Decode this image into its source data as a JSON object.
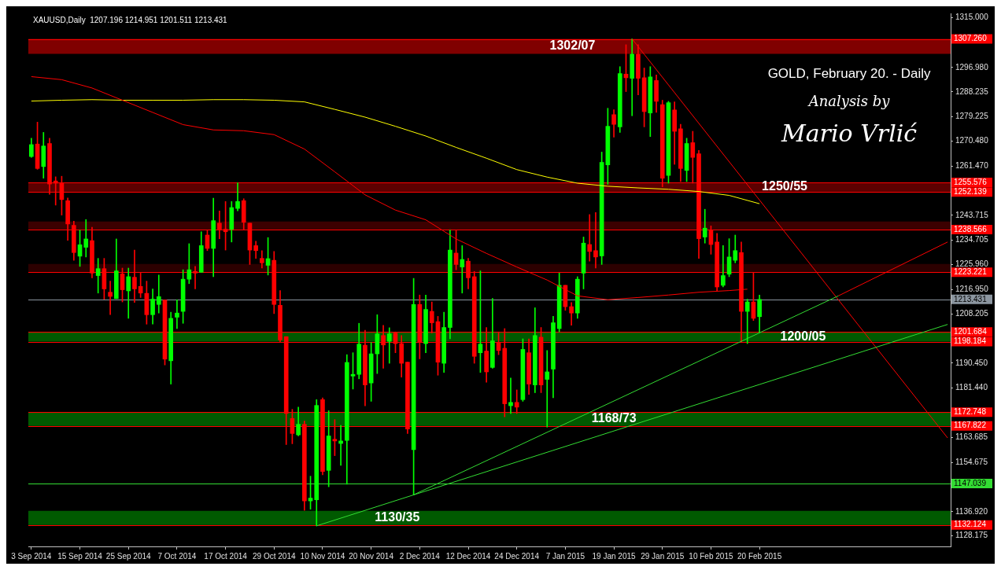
{
  "chart_data": {
    "type": "candlestick",
    "title": "XAUUSD,Daily  1207.196 1214.951 1201.511 1213.431",
    "subtitle": "GOLD, February 20. - Daily",
    "annotations": [
      "Analysis by",
      "Mario Vrlić"
    ],
    "categories": [
      "3 Sep 2014",
      null,
      null,
      null,
      null,
      null,
      null,
      null,
      "15 Sep 2014",
      null,
      null,
      null,
      null,
      null,
      null,
      null,
      "25 Sep 2014",
      null,
      null,
      null,
      null,
      null,
      null,
      null,
      "7 Oct 2014",
      null,
      null,
      null,
      null,
      null,
      null,
      null,
      "17 Oct 2014",
      null,
      null,
      null,
      null,
      null,
      null,
      null,
      "29 Oct 2014",
      null,
      null,
      null,
      null,
      null,
      null,
      null,
      "10 Nov 2014",
      null,
      null,
      null,
      null,
      null,
      null,
      null,
      "20 Nov 2014",
      null,
      null,
      null,
      null,
      null,
      null,
      null,
      "2 Dec 2014",
      null,
      null,
      null,
      null,
      null,
      null,
      null,
      "12 Dec 2014",
      null,
      null,
      null,
      null,
      null,
      null,
      null,
      "24 Dec 2014",
      null,
      null,
      null,
      null,
      null,
      null,
      null,
      "7 Jan 2015",
      null,
      null,
      null,
      null,
      null,
      null,
      null,
      "19 Jan 2015",
      null,
      null,
      null,
      null,
      null,
      null,
      null,
      "29 Jan 2015",
      null,
      null,
      null,
      null,
      null,
      null,
      null,
      "10 Feb 2015",
      null,
      null,
      null,
      null,
      null,
      null,
      null,
      "20 Feb 2015",
      null,
      null,
      null,
      null,
      null,
      null,
      null,
      null,
      null,
      null,
      null,
      null,
      null,
      null,
      null,
      null,
      null,
      null,
      null,
      null,
      null,
      null,
      null,
      null,
      null,
      null,
      null,
      null,
      null,
      null,
      null
    ],
    "ohlc": [
      [
        1264.9,
        1271.5,
        1264.6,
        1269.2
      ],
      [
        1269.4,
        1277.3,
        1260.3,
        1260.6
      ],
      [
        1261.3,
        1273.6,
        1257.1,
        1268.7
      ],
      [
        1269.6,
        1271.5,
        1251.3,
        1255.0
      ],
      [
        1256.1,
        1257.6,
        1247.4,
        1255.3
      ],
      [
        1255.3,
        1257.8,
        1243.8,
        1249.4
      ],
      [
        1249.0,
        1250.0,
        1234.7,
        1240.6
      ],
      [
        1240.1,
        1241.6,
        1227.5,
        1230.3
      ],
      [
        1229.0,
        1238.4,
        1225.3,
        1233.1
      ],
      [
        1232.2,
        1242.2,
        1228.7,
        1235.2
      ],
      [
        1234.6,
        1239.4,
        1221.2,
        1222.9
      ],
      [
        1222.0,
        1228.2,
        1215.7,
        1224.5
      ],
      [
        1224.5,
        1228.2,
        1213.5,
        1217.2
      ],
      [
        1216.0,
        1220.0,
        1207.9,
        1214.5
      ],
      [
        1213.7,
        1235.2,
        1213.7,
        1223.7
      ],
      [
        1222.6,
        1224.7,
        1212.5,
        1216.9
      ],
      [
        1216.5,
        1224.7,
        1206.6,
        1221.6
      ],
      [
        1221.4,
        1231.2,
        1212.3,
        1217.2
      ],
      [
        1218.1,
        1222.9,
        1214.1,
        1215.7
      ],
      [
        1215.6,
        1220.0,
        1204.5,
        1207.9
      ],
      [
        1207.9,
        1217.2,
        1204.5,
        1213.5
      ],
      [
        1211.6,
        1222.2,
        1208.5,
        1214.4
      ],
      [
        1213.2,
        1213.3,
        1189.8,
        1191.9
      ],
      [
        1191.3,
        1208.8,
        1182.9,
        1206.6
      ],
      [
        1207.0,
        1213.3,
        1202.9,
        1208.5
      ],
      [
        1209.1,
        1224.1,
        1204.8,
        1220.7
      ],
      [
        1220.7,
        1233.5,
        1219.1,
        1224.1
      ],
      [
        1223.5,
        1225.3,
        1217.2,
        1222.9
      ],
      [
        1223.2,
        1237.8,
        1223.2,
        1232.8
      ],
      [
        1236.6,
        1238.2,
        1231.0,
        1231.8
      ],
      [
        1231.8,
        1249.9,
        1221.6,
        1241.8
      ],
      [
        1240.9,
        1245.3,
        1235.3,
        1238.7
      ],
      [
        1238.7,
        1248.7,
        1231.2,
        1237.8
      ],
      [
        1238.7,
        1248.7,
        1234.1,
        1246.5
      ],
      [
        1246.2,
        1255.4,
        1245.3,
        1248.7
      ],
      [
        1249.0,
        1249.7,
        1238.4,
        1241.2
      ],
      [
        1240.9,
        1240.9,
        1226.0,
        1231.2
      ],
      [
        1232.8,
        1234.4,
        1228.2,
        1231.0
      ],
      [
        1228.2,
        1231.0,
        1224.7,
        1226.6
      ],
      [
        1225.7,
        1235.7,
        1222.2,
        1228.1
      ],
      [
        1227.5,
        1230.7,
        1208.3,
        1211.6
      ],
      [
        1211.3,
        1216.6,
        1197.9,
        1198.8
      ],
      [
        1200.0,
        1200.0,
        1161.1,
        1172.3
      ],
      [
        1170.5,
        1173.8,
        1161.4,
        1165.1
      ],
      [
        1164.6,
        1174.6,
        1164.2,
        1168.4
      ],
      [
        1168.4,
        1169.6,
        1137.4,
        1140.8
      ],
      [
        1140.8,
        1149.7,
        1137.8,
        1141.8
      ],
      [
        1141.2,
        1177.3,
        1131.8,
        1175.2
      ],
      [
        1177.3,
        1177.9,
        1150.2,
        1151.4
      ],
      [
        1151.8,
        1173.3,
        1145.9,
        1164.2
      ],
      [
        1163.0,
        1170.1,
        1157.1,
        1162.4
      ],
      [
        1161.5,
        1168.0,
        1153.6,
        1162.4
      ],
      [
        1162.6,
        1193.5,
        1146.8,
        1190.7
      ],
      [
        1185.8,
        1194.2,
        1181.1,
        1186.4
      ],
      [
        1186.4,
        1204.8,
        1184.8,
        1197.3
      ],
      [
        1196.9,
        1202.3,
        1175.1,
        1182.6
      ],
      [
        1183.3,
        1197.9,
        1176.7,
        1193.8
      ],
      [
        1193.8,
        1207.9,
        1186.7,
        1201.0
      ],
      [
        1200.4,
        1204.1,
        1188.6,
        1197.0
      ],
      [
        1198.3,
        1203.2,
        1190.4,
        1201.0
      ],
      [
        1201.3,
        1201.7,
        1194.2,
        1197.5
      ],
      [
        1197.5,
        1200.4,
        1185.4,
        1190.4
      ],
      [
        1190.8,
        1190.8,
        1165.1,
        1166.7
      ],
      [
        1159.3,
        1221.0,
        1143.0,
        1211.6
      ],
      [
        1211.6,
        1215.0,
        1192.0,
        1197.9
      ],
      [
        1197.5,
        1215.0,
        1194.2,
        1209.8
      ],
      [
        1209.1,
        1212.5,
        1201.3,
        1205.0
      ],
      [
        1205.4,
        1207.3,
        1186.1,
        1190.8
      ],
      [
        1190.4,
        1208.8,
        1187.1,
        1203.3
      ],
      [
        1203.3,
        1238.4,
        1199.2,
        1231.2
      ],
      [
        1230.1,
        1238.4,
        1224.1,
        1226.0
      ],
      [
        1225.1,
        1232.8,
        1215.7,
        1227.8
      ],
      [
        1227.2,
        1228.2,
        1217.2,
        1221.2
      ],
      [
        1221.6,
        1223.5,
        1190.4,
        1192.9
      ],
      [
        1194.2,
        1223.7,
        1187.1,
        1197.3
      ],
      [
        1194.8,
        1203.3,
        1183.6,
        1187.3
      ],
      [
        1188.9,
        1213.8,
        1188.6,
        1198.5
      ],
      [
        1197.9,
        1201.7,
        1193.5,
        1195.0
      ],
      [
        1195.8,
        1202.9,
        1171.1,
        1175.8
      ],
      [
        1175.1,
        1185.1,
        1172.3,
        1176.3
      ],
      [
        1176.3,
        1180.8,
        1172.3,
        1174.6
      ],
      [
        1177.3,
        1199.2,
        1176.7,
        1195.4
      ],
      [
        1194.2,
        1199.2,
        1179.2,
        1182.9
      ],
      [
        1182.6,
        1210.4,
        1179.8,
        1200.4
      ],
      [
        1199.8,
        1203.3,
        1179.8,
        1182.6
      ],
      [
        1184.6,
        1195.0,
        1167.4,
        1187.3
      ],
      [
        1188.3,
        1207.3,
        1178.0,
        1205.0
      ],
      [
        1202.9,
        1222.9,
        1201.7,
        1218.5
      ],
      [
        1218.5,
        1218.5,
        1209.5,
        1210.8
      ],
      [
        1210.8,
        1212.3,
        1204.1,
        1208.5
      ],
      [
        1208.5,
        1221.6,
        1206.6,
        1220.7
      ],
      [
        1222.9,
        1235.9,
        1217.2,
        1233.7
      ],
      [
        1233.2,
        1244.0,
        1227.2,
        1230.7
      ],
      [
        1231.0,
        1244.7,
        1224.7,
        1228.7
      ],
      [
        1229.1,
        1266.5,
        1226.0,
        1262.8
      ],
      [
        1261.9,
        1282.3,
        1254.9,
        1275.8
      ],
      [
        1280.0,
        1281.8,
        1271.9,
        1276.5
      ],
      [
        1275.6,
        1297.3,
        1273.6,
        1294.8
      ],
      [
        1294.6,
        1305.2,
        1288.3,
        1293.3
      ],
      [
        1293.1,
        1307.3,
        1279.6,
        1301.8
      ],
      [
        1301.8,
        1305.2,
        1287.1,
        1293.1
      ],
      [
        1293.3,
        1296.8,
        1275.6,
        1281.1
      ],
      [
        1280.6,
        1297.3,
        1272.1,
        1293.6
      ],
      [
        1292.3,
        1294.3,
        1280.8,
        1284.8
      ],
      [
        1283.6,
        1285.2,
        1254.0,
        1257.1
      ],
      [
        1258.1,
        1284.8,
        1255.3,
        1284.3
      ],
      [
        1281.7,
        1284.6,
        1262.1,
        1274.0
      ],
      [
        1274.9,
        1276.5,
        1255.9,
        1260.6
      ],
      [
        1259.9,
        1271.5,
        1255.9,
        1269.6
      ],
      [
        1269.9,
        1274.0,
        1255.3,
        1264.6
      ],
      [
        1265.9,
        1267.1,
        1228.2,
        1235.3
      ],
      [
        1235.9,
        1245.9,
        1233.7,
        1239.1
      ],
      [
        1238.2,
        1239.9,
        1229.7,
        1233.2
      ],
      [
        1234.1,
        1237.2,
        1216.6,
        1217.9
      ],
      [
        1218.5,
        1232.8,
        1217.9,
        1222.0
      ],
      [
        1222.5,
        1235.3,
        1221.6,
        1228.7
      ],
      [
        1227.5,
        1236.6,
        1226.6,
        1231.0
      ],
      [
        1230.3,
        1234.1,
        1197.9,
        1209.1
      ],
      [
        1209.1,
        1213.5,
        1197.5,
        1212.5
      ],
      [
        1212.5,
        1222.9,
        1205.8,
        1206.6
      ],
      [
        1207.196,
        1214.951,
        1201.511,
        1213.431
      ],
      null,
      null,
      null,
      null,
      null,
      null,
      null,
      null,
      null,
      null,
      null,
      null,
      null,
      null,
      null,
      null,
      null,
      null,
      null,
      null,
      null,
      null,
      null,
      null,
      null,
      null,
      null,
      null,
      null,
      null,
      null
    ],
    "series": [
      {
        "type": "line",
        "color": "#ff0000",
        "values": [
          1293.7,
          null,
          null,
          null,
          null,
          1292.6,
          null,
          null,
          null,
          null,
          1289.6,
          null,
          null,
          null,
          null,
          1285.2,
          null,
          null,
          null,
          null,
          1280.8,
          null,
          null,
          null,
          null,
          1276.4,
          null,
          null,
          null,
          null,
          1274.5,
          null,
          null,
          null,
          null,
          1274.2,
          null,
          null,
          null,
          null,
          1272.8,
          null,
          null,
          null,
          null,
          1267.6,
          null,
          null,
          null,
          null,
          1259.4,
          null,
          null,
          null,
          null,
          1251.1,
          null,
          null,
          null,
          null,
          1245.6,
          null,
          null,
          null,
          null,
          1242.1,
          null,
          null,
          null,
          null,
          1235.2,
          null,
          null,
          null,
          null,
          1230.0,
          null,
          null,
          null,
          null,
          1225.1,
          null,
          null,
          null,
          null,
          1220.4,
          null,
          null,
          null,
          null,
          1214.7,
          null,
          null,
          null,
          null,
          1213.3,
          null,
          null,
          null,
          null,
          1214.1,
          null,
          null,
          null,
          null,
          1215.0,
          null,
          null,
          null,
          null,
          1216.0,
          null,
          null,
          null,
          null,
          1216.6,
          null,
          null,
          1217.1,
          null,
          null,
          null,
          null,
          null,
          null,
          null,
          null,
          null,
          null,
          null,
          null,
          null,
          null,
          null,
          null,
          null,
          null,
          null,
          null,
          null,
          null,
          null,
          null,
          null,
          null,
          null,
          null,
          null,
          null,
          null,
          null,
          null
        ]
      },
      {
        "type": "line",
        "color": "#ffff00",
        "values": [
          1284.9,
          null,
          null,
          null,
          null,
          1285.2,
          null,
          null,
          null,
          null,
          1285.4,
          null,
          null,
          null,
          null,
          1285.2,
          null,
          null,
          null,
          null,
          1285.2,
          null,
          null,
          null,
          null,
          1285.2,
          null,
          null,
          null,
          null,
          1285.4,
          null,
          null,
          null,
          null,
          1285.4,
          null,
          null,
          null,
          null,
          1285.2,
          null,
          null,
          null,
          null,
          1284.6,
          null,
          null,
          null,
          null,
          1281.9,
          null,
          null,
          null,
          null,
          1279.1,
          null,
          null,
          null,
          null,
          1275.8,
          null,
          null,
          null,
          null,
          1272.3,
          null,
          null,
          null,
          null,
          1268.2,
          null,
          null,
          null,
          null,
          1264.3,
          null,
          null,
          null,
          null,
          1260.2,
          null,
          null,
          null,
          null,
          1257.5,
          null,
          null,
          null,
          null,
          1255.3,
          null,
          null,
          null,
          null,
          1254.2,
          null,
          null,
          null,
          null,
          1253.6,
          null,
          null,
          null,
          null,
          1253.1,
          null,
          null,
          null,
          null,
          1252.3,
          null,
          null,
          null,
          null,
          1250.9,
          null,
          null,
          null,
          null,
          1247.9,
          null,
          null,
          null,
          null,
          null,
          null,
          null,
          null,
          null,
          null,
          null,
          null,
          null,
          null,
          null,
          null,
          null,
          null,
          null,
          null,
          null,
          null,
          null,
          null,
          null,
          null,
          null,
          null,
          null,
          null,
          null
        ]
      },
      {
        "type": "line",
        "color": "#33dd33",
        "values": [
          null,
          null,
          null,
          null,
          null,
          null,
          null,
          null,
          null,
          null,
          null,
          null,
          null,
          null,
          null,
          null,
          null,
          null,
          null,
          null,
          null,
          null,
          null,
          null,
          null,
          null,
          null,
          null,
          null,
          null,
          null,
          null,
          null,
          null,
          null,
          null,
          null,
          null,
          null,
          null,
          null,
          null,
          null,
          null,
          null,
          null,
          null,
          1131.8,
          null,
          null,
          null,
          null,
          null,
          null,
          null,
          null,
          null,
          null,
          null,
          null,
          null,
          null,
          null,
          null,
          null,
          null,
          null,
          null,
          null,
          null,
          null,
          null,
          null,
          null,
          null,
          null,
          null,
          null,
          null,
          null,
          null,
          null,
          null,
          null,
          null,
          null,
          null,
          null,
          null,
          null,
          null,
          null,
          null,
          null,
          null,
          null,
          null,
          null,
          null,
          null,
          null,
          null,
          null,
          null,
          null,
          null,
          null,
          null,
          null,
          null,
          null,
          null,
          null,
          null,
          null,
          null,
          null,
          null,
          null,
          null,
          null,
          null,
          null,
          null,
          null,
          null,
          null,
          null,
          null,
          null,
          null,
          null,
          null,
          null,
          null,
          null,
          null,
          null,
          null,
          null,
          null,
          null,
          null,
          null,
          null,
          null,
          null,
          null,
          null,
          null,
          null,
          1204.4
        ]
      },
      {
        "type": "line",
        "color": "#33dd33",
        "values": [
          null,
          null,
          null,
          null,
          null,
          null,
          null,
          null,
          null,
          null,
          null,
          null,
          null,
          null,
          null,
          null,
          null,
          null,
          null,
          null,
          null,
          null,
          null,
          null,
          null,
          null,
          null,
          null,
          null,
          null,
          null,
          null,
          null,
          null,
          null,
          null,
          null,
          null,
          null,
          null,
          null,
          null,
          null,
          null,
          null,
          null,
          null,
          null,
          null,
          null,
          null,
          null,
          null,
          null,
          null,
          null,
          null,
          null,
          null,
          null,
          null,
          null,
          null,
          1143.0,
          null,
          null,
          null,
          null,
          null,
          null,
          null,
          null,
          null,
          null,
          null,
          null,
          null,
          null,
          null,
          null,
          null,
          null,
          null,
          null,
          null,
          null,
          null,
          null,
          null,
          null,
          null,
          null,
          null,
          null,
          null,
          null,
          null,
          null,
          null,
          null,
          null,
          null,
          null,
          null,
          null,
          null,
          null,
          null,
          null,
          null,
          null,
          null,
          null,
          null,
          null,
          null,
          null,
          null,
          null,
          null,
          null,
          null,
          null,
          null,
          null,
          null,
          null,
          null,
          null,
          null,
          null,
          null,
          null,
          1214.7,
          null,
          null,
          null,
          null,
          null,
          null,
          null,
          null,
          null,
          null,
          null,
          null,
          null,
          null,
          null,
          null,
          null,
          null
        ]
      },
      {
        "type": "line",
        "color": "#ff0000",
        "values": [
          null,
          null,
          null,
          null,
          null,
          null,
          null,
          null,
          null,
          null,
          null,
          null,
          null,
          null,
          null,
          null,
          null,
          null,
          null,
          null,
          null,
          null,
          null,
          null,
          null,
          null,
          null,
          null,
          null,
          null,
          null,
          null,
          null,
          null,
          null,
          null,
          null,
          null,
          null,
          null,
          null,
          null,
          null,
          null,
          null,
          null,
          null,
          null,
          null,
          null,
          null,
          null,
          null,
          null,
          null,
          null,
          null,
          null,
          null,
          null,
          null,
          null,
          null,
          null,
          null,
          null,
          null,
          null,
          null,
          null,
          null,
          null,
          null,
          null,
          null,
          null,
          null,
          null,
          null,
          null,
          null,
          null,
          null,
          null,
          null,
          null,
          null,
          null,
          null,
          null,
          null,
          null,
          null,
          null,
          null,
          null,
          null,
          null,
          null,
          null,
          null,
          null,
          null,
          null,
          null,
          null,
          null,
          null,
          null,
          null,
          null,
          null,
          null,
          null,
          null,
          null,
          null,
          null,
          null,
          null,
          null,
          null,
          null,
          null,
          null,
          null,
          null,
          null,
          null,
          null,
          null,
          null,
          null,
          1214.7,
          null,
          null,
          null,
          null,
          null,
          null,
          null,
          null,
          null,
          null,
          null,
          null,
          null,
          null,
          null,
          null,
          null,
          1234.1
        ]
      },
      {
        "type": "line",
        "color": "#ff0000",
        "values": [
          null,
          null,
          null,
          null,
          null,
          null,
          null,
          null,
          null,
          null,
          null,
          null,
          null,
          null,
          null,
          null,
          null,
          null,
          null,
          null,
          null,
          null,
          null,
          null,
          null,
          null,
          null,
          null,
          null,
          null,
          null,
          null,
          null,
          null,
          null,
          null,
          null,
          null,
          null,
          null,
          null,
          null,
          null,
          null,
          null,
          null,
          null,
          null,
          null,
          null,
          null,
          null,
          null,
          null,
          null,
          null,
          null,
          null,
          null,
          null,
          null,
          null,
          null,
          null,
          null,
          null,
          null,
          null,
          null,
          null,
          null,
          null,
          null,
          null,
          null,
          null,
          null,
          null,
          null,
          null,
          null,
          null,
          null,
          null,
          null,
          null,
          null,
          null,
          null,
          null,
          null,
          null,
          null,
          null,
          null,
          null,
          null,
          null,
          null,
          1307.3,
          null,
          null,
          null,
          null,
          null,
          null,
          null,
          null,
          null,
          null,
          null,
          null,
          null,
          null,
          null,
          null,
          null,
          null,
          null,
          null,
          null,
          null,
          null,
          null,
          null,
          null,
          null,
          null,
          null,
          null,
          null,
          null,
          null,
          null,
          null,
          null,
          null,
          null,
          null,
          null,
          null,
          null,
          null,
          null,
          null,
          null,
          null,
          null,
          null,
          null,
          null,
          1163.5
        ]
      }
    ],
    "ylim": [
      1124.4,
      1316.5
    ],
    "yticks": [
      {
        "value": 1315,
        "label": "1315.000"
      },
      {
        "value": 1296.98,
        "label": "1296.980"
      },
      {
        "value": 1288.235,
        "label": "1288.235"
      },
      {
        "value": 1279.225,
        "label": "1279.225"
      },
      {
        "value": 1270.48,
        "label": "1270.480"
      },
      {
        "value": 1261.47,
        "label": "1261.470"
      },
      {
        "value": 1243.715,
        "label": "1243.715"
      },
      {
        "value": 1234.705,
        "label": "1234.705"
      },
      {
        "value": 1225.96,
        "label": "1225.960"
      },
      {
        "value": 1216.95,
        "label": "1216.950"
      },
      {
        "value": 1208.205,
        "label": "1208.205"
      },
      {
        "value": 1190.45,
        "label": "1190.450"
      },
      {
        "value": 1181.44,
        "label": "1181.440"
      },
      {
        "value": 1163.685,
        "label": "1163.685"
      },
      {
        "value": 1154.675,
        "label": "1154.675"
      },
      {
        "value": 1136.92,
        "label": "1136.920"
      },
      {
        "value": 1128.175,
        "label": "1128.175"
      }
    ],
    "bands": [
      {
        "axis": "y",
        "from": 1301.9,
        "to": 1307.26,
        "label": "1302/07",
        "color": "#800000"
      },
      {
        "axis": "y",
        "from": 1252.139,
        "to": 1255.576,
        "label": "1250/55",
        "color": "#5c0000"
      },
      {
        "axis": "y",
        "from": 1238.566,
        "to": 1241.5,
        "color": "#3c0000"
      },
      {
        "axis": "y",
        "from": 1223.221,
        "to": 1226.2,
        "color": "#2c0000"
      },
      {
        "axis": "y",
        "from": 1198.184,
        "to": 1201.684,
        "label": "1200/05",
        "color": "#005a00"
      },
      {
        "axis": "y",
        "from": 1167.822,
        "to": 1172.748,
        "label": "1168/73",
        "color": "#005a00"
      },
      {
        "axis": "y",
        "from": 1132.124,
        "to": 1137.2,
        "label": "1130/35",
        "color": "#005a00"
      }
    ],
    "ref_lines": [
      {
        "axis": "y",
        "value": 1307.26,
        "label": "1307.260",
        "color": "#ff0000"
      },
      {
        "axis": "y",
        "value": 1255.576,
        "label": "1255.576",
        "color": "#ff0000"
      },
      {
        "axis": "y",
        "value": 1252.139,
        "label": "1252.139",
        "color": "#ff0000"
      },
      {
        "axis": "y",
        "value": 1238.566,
        "label": "1238.566",
        "color": "#ff0000"
      },
      {
        "axis": "y",
        "value": 1223.221,
        "label": "1223.221",
        "color": "#ff0000"
      },
      {
        "axis": "y",
        "value": 1213.431,
        "label": "1213.431",
        "color": "#8c96a0"
      },
      {
        "axis": "y",
        "value": 1201.684,
        "label": "1201.684",
        "color": "#ff0000"
      },
      {
        "axis": "y",
        "value": 1198.184,
        "label": "1198.184",
        "color": "#ff0000"
      },
      {
        "axis": "y",
        "value": 1172.748,
        "label": "1172.748",
        "color": "#ff0000"
      },
      {
        "axis": "y",
        "value": 1167.822,
        "label": "1167.822",
        "color": "#ff0000"
      },
      {
        "axis": "y",
        "value": 1147.039,
        "label": "1147.039",
        "color": "#33dd33"
      },
      {
        "axis": "y",
        "value": 1132.124,
        "label": "1132.124",
        "color": "#ff0000"
      }
    ],
    "grid": false,
    "legend": false
  }
}
